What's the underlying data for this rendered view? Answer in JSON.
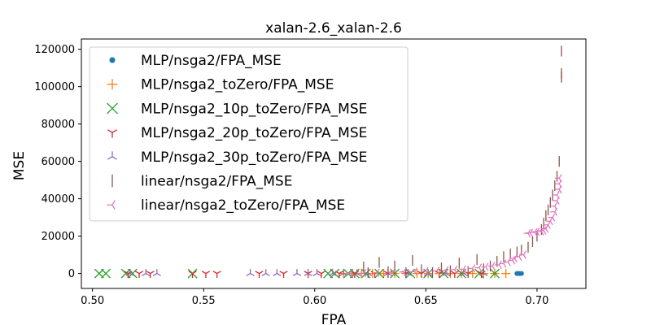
{
  "chart_data": {
    "type": "scatter",
    "title": "xalan-2.6_xalan-2.6",
    "xlabel": "FPA",
    "ylabel": "MSE",
    "xlim": [
      0.495,
      0.722
    ],
    "ylim": [
      -8000,
      125500
    ],
    "xticks": [
      0.5,
      0.55,
      0.6,
      0.65,
      0.7
    ],
    "xtick_labels": [
      "0.50",
      "0.55",
      "0.60",
      "0.65",
      "0.70"
    ],
    "yticks": [
      0,
      20000,
      40000,
      60000,
      80000,
      100000,
      120000
    ],
    "ytick_labels": [
      "0",
      "20000",
      "40000",
      "60000",
      "80000",
      "100000",
      "120000"
    ],
    "grid": false,
    "legend_position": "upper-left",
    "series": [
      {
        "name": "MLP/nsga2/FPA_MSE",
        "marker": "point",
        "color": "#1f77b4",
        "x": [
          0.691,
          0.692,
          0.693
        ],
        "y": [
          0,
          0,
          0
        ]
      },
      {
        "name": "MLP/nsga2_toZero/FPA_MSE",
        "marker": "plus",
        "color": "#ff7f0e",
        "x": [
          0.613,
          0.617,
          0.621,
          0.626,
          0.631,
          0.636,
          0.641,
          0.646,
          0.651,
          0.656,
          0.661,
          0.666,
          0.671,
          0.676,
          0.681,
          0.686
        ],
        "y": [
          0,
          0,
          0,
          0,
          0,
          0,
          0,
          0,
          0,
          0,
          0,
          0,
          0,
          0,
          0,
          0
        ]
      },
      {
        "name": "MLP/nsga2_10p_toZero/FPA_MSE",
        "marker": "x",
        "color": "#2ca02c",
        "x": [
          0.503,
          0.506,
          0.515,
          0.518,
          0.545,
          0.606,
          0.609,
          0.615,
          0.618,
          0.623,
          0.629,
          0.636,
          0.643,
          0.651,
          0.658,
          0.666,
          0.674,
          0.681
        ],
        "y": [
          0,
          0,
          0,
          0,
          0,
          0,
          0,
          0,
          0,
          0,
          0,
          0,
          0,
          0,
          0,
          0,
          0,
          0
        ]
      },
      {
        "name": "MLP/nsga2_20p_toZero/FPA_MSE",
        "marker": "tri_down",
        "color": "#d62728",
        "x": [
          0.516,
          0.521,
          0.526,
          0.545,
          0.551,
          0.556,
          0.575,
          0.586,
          0.597,
          0.603,
          0.611,
          0.618,
          0.627,
          0.633,
          0.641,
          0.648,
          0.656,
          0.663,
          0.669,
          0.675
        ],
        "y": [
          0,
          0,
          0,
          0,
          0,
          0,
          0,
          0,
          0,
          0,
          0,
          0,
          0,
          0,
          0,
          0,
          0,
          0,
          0,
          0
        ]
      },
      {
        "name": "MLP/nsga2_30p_toZero/FPA_MSE",
        "marker": "tri_up",
        "color": "#9467bd",
        "x": [
          0.517,
          0.524,
          0.529,
          0.571,
          0.578,
          0.583,
          0.592,
          0.597,
          0.601,
          0.608,
          0.613,
          0.619,
          0.624,
          0.633,
          0.642,
          0.651,
          0.659,
          0.667,
          0.676
        ],
        "y": [
          0,
          0,
          0,
          0,
          0,
          0,
          0,
          0,
          0,
          0,
          0,
          0,
          0,
          0,
          0,
          0,
          0,
          0,
          0
        ]
      },
      {
        "name": "linear/nsga2/FPA_MSE",
        "marker": "vline",
        "color": "#8c564b",
        "x": [
          0.622,
          0.624,
          0.629,
          0.633,
          0.636,
          0.641,
          0.644,
          0.648,
          0.653,
          0.657,
          0.661,
          0.665,
          0.669,
          0.673,
          0.676,
          0.679,
          0.682,
          0.685,
          0.688,
          0.691,
          0.693,
          0.696,
          0.698,
          0.7,
          0.702,
          0.703,
          0.704,
          0.705,
          0.706,
          0.707,
          0.708,
          0.709,
          0.71,
          0.711,
          0.711,
          0.711
        ],
        "y": [
          3500,
          500,
          6000,
          1000,
          4000,
          500,
          7000,
          2000,
          500,
          3000,
          1500,
          5500,
          1000,
          7500,
          2500,
          4000,
          6500,
          9000,
          10500,
          11500,
          12500,
          14000,
          17000,
          20000,
          23500,
          27000,
          31000,
          34000,
          38000,
          42000,
          47000,
          52000,
          60000,
          105000,
          107000,
          119000
        ]
      },
      {
        "name": "linear/nsga2_toZero/FPA_MSE",
        "marker": "tri_left",
        "color": "#e377c2",
        "x": [
          0.616,
          0.622,
          0.628,
          0.635,
          0.64,
          0.645,
          0.65,
          0.655,
          0.659,
          0.663,
          0.667,
          0.671,
          0.674,
          0.677,
          0.68,
          0.683,
          0.685,
          0.687,
          0.689,
          0.69,
          0.692,
          0.694,
          0.696,
          0.697,
          0.699,
          0.7,
          0.702,
          0.703,
          0.704,
          0.705,
          0.706,
          0.707,
          0.708,
          0.708,
          0.709,
          0.709,
          0.71,
          0.71,
          0.71
        ],
        "y": [
          0,
          200,
          400,
          600,
          800,
          1000,
          1200,
          1400,
          1700,
          2000,
          2300,
          2700,
          3100,
          3500,
          4000,
          4600,
          5300,
          6100,
          7000,
          8000,
          9000,
          10000,
          21500,
          21700,
          22000,
          22300,
          22600,
          23000,
          24000,
          26000,
          28000,
          30000,
          33000,
          36000,
          39000,
          42000,
          45000,
          48000,
          51000
        ]
      }
    ]
  }
}
